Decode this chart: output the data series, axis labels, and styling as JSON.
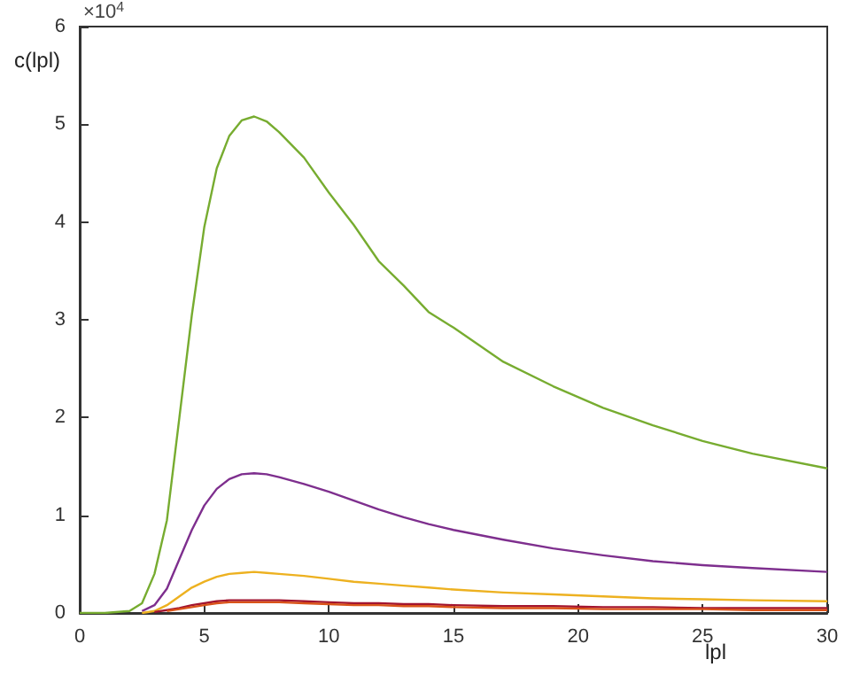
{
  "chart_data": {
    "type": "line",
    "xlabel": "lpl",
    "ylabel": "c(lpl)",
    "annotations": [
      "×10$^{4}$"
    ],
    "x": [
      0,
      1,
      2,
      2.5,
      3,
      3.5,
      4,
      4.5,
      5,
      5.5,
      6,
      6.5,
      7,
      7.5,
      8,
      9,
      10,
      11,
      12,
      13,
      14,
      15,
      17,
      19,
      21,
      23,
      25,
      27,
      30
    ],
    "series": [
      {
        "color": "#77ac30",
        "values": [
          0,
          0,
          0.02,
          0.1,
          0.4,
          0.95,
          2.0,
          3.05,
          3.95,
          4.55,
          4.88,
          5.04,
          5.08,
          5.03,
          4.92,
          4.66,
          4.3,
          3.97,
          3.6,
          3.35,
          3.08,
          2.92,
          2.57,
          2.32,
          2.1,
          1.92,
          1.76,
          1.63,
          1.48
        ]
      },
      {
        "color": "#7e2f8e",
        "values": [
          null,
          null,
          null,
          0.02,
          0.08,
          0.25,
          0.55,
          0.85,
          1.1,
          1.27,
          1.37,
          1.42,
          1.43,
          1.42,
          1.39,
          1.32,
          1.24,
          1.15,
          1.06,
          0.98,
          0.91,
          0.85,
          0.75,
          0.66,
          0.59,
          0.53,
          0.49,
          0.46,
          0.42
        ]
      },
      {
        "color": "#edb120",
        "values": [
          null,
          null,
          null,
          0,
          0.02,
          0.08,
          0.17,
          0.26,
          0.32,
          0.37,
          0.4,
          0.41,
          0.42,
          0.41,
          0.4,
          0.38,
          0.35,
          0.32,
          0.3,
          0.28,
          0.26,
          0.24,
          0.21,
          0.19,
          0.17,
          0.15,
          0.14,
          0.13,
          0.12
        ]
      },
      {
        "color": "#a2142f",
        "values": [
          null,
          null,
          null,
          null,
          0.01,
          0.03,
          0.05,
          0.08,
          0.1,
          0.12,
          0.13,
          0.13,
          0.13,
          0.13,
          0.13,
          0.12,
          0.11,
          0.1,
          0.1,
          0.09,
          0.09,
          0.08,
          0.07,
          0.07,
          0.06,
          0.06,
          0.05,
          0.05,
          0.05
        ]
      },
      {
        "color": "#d95319",
        "values": [
          null,
          null,
          null,
          null,
          null,
          0.02,
          0.04,
          0.06,
          0.08,
          0.1,
          0.11,
          0.11,
          0.11,
          0.11,
          0.11,
          0.1,
          0.09,
          0.08,
          0.08,
          0.07,
          0.07,
          0.06,
          0.05,
          0.05,
          0.04,
          0.04,
          0.04,
          0.03,
          0.03
        ]
      }
    ],
    "xlim": [
      0,
      30
    ],
    "xticks": [
      0,
      5,
      10,
      15,
      20,
      25,
      30
    ],
    "ylim": [
      0,
      6
    ],
    "yticks": [
      0,
      1,
      2,
      3,
      4,
      5,
      6
    ],
    "grid": false,
    "marker": "none",
    "line_style": "solid"
  }
}
